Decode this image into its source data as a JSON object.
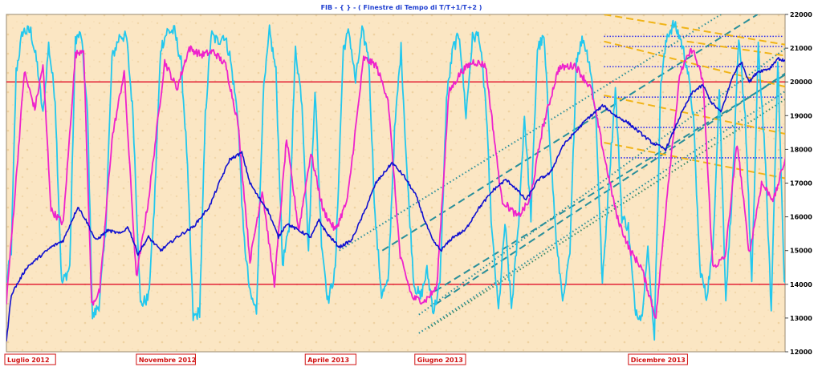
{
  "chart_data": {
    "type": "line",
    "title": "FIB - { } - ( Finestre di Tempo di T/T+1/T+2 )",
    "ylim": [
      12000,
      22000
    ],
    "y_ticks": [
      12000,
      13000,
      14000,
      15000,
      16000,
      17000,
      18000,
      19000,
      20000,
      21000,
      22000
    ],
    "x_labels": [
      "Luglio 2012",
      "Novembre 2012",
      "Aprile 2013",
      "Giugno 2013",
      "Dicembre 2013"
    ],
    "x_label_index": [
      0,
      162,
      370,
      505,
      768
    ],
    "n_points": 960,
    "grid": false,
    "legend": "none",
    "horizontal_levels": [
      {
        "value": 20000,
        "color": "#e0102a"
      },
      {
        "value": 14000,
        "color": "#e0102a"
      }
    ],
    "retracement_levels": [
      21350,
      21050,
      20450,
      19550,
      18650,
      17750
    ],
    "series": [
      {
        "color": "#1010d0",
        "keypoints": [
          [
            0,
            12300
          ],
          [
            6,
            13700
          ],
          [
            25,
            14500
          ],
          [
            40,
            14800
          ],
          [
            55,
            15100
          ],
          [
            70,
            15300
          ],
          [
            88,
            16300
          ],
          [
            98,
            15900
          ],
          [
            110,
            15300
          ],
          [
            125,
            15600
          ],
          [
            140,
            15500
          ],
          [
            150,
            15700
          ],
          [
            162,
            14900
          ],
          [
            175,
            15400
          ],
          [
            190,
            15000
          ],
          [
            210,
            15400
          ],
          [
            230,
            15700
          ],
          [
            250,
            16300
          ],
          [
            262,
            17000
          ],
          [
            275,
            17700
          ],
          [
            290,
            17900
          ],
          [
            300,
            17000
          ],
          [
            310,
            16600
          ],
          [
            322,
            16200
          ],
          [
            335,
            15400
          ],
          [
            345,
            15800
          ],
          [
            360,
            15600
          ],
          [
            375,
            15400
          ],
          [
            385,
            15900
          ],
          [
            395,
            15500
          ],
          [
            410,
            15100
          ],
          [
            425,
            15300
          ],
          [
            440,
            16100
          ],
          [
            455,
            17000
          ],
          [
            475,
            17600
          ],
          [
            490,
            17200
          ],
          [
            505,
            16600
          ],
          [
            515,
            15900
          ],
          [
            525,
            15300
          ],
          [
            535,
            15000
          ],
          [
            550,
            15400
          ],
          [
            565,
            15600
          ],
          [
            580,
            16200
          ],
          [
            600,
            16800
          ],
          [
            615,
            17100
          ],
          [
            625,
            16900
          ],
          [
            640,
            16500
          ],
          [
            655,
            17100
          ],
          [
            670,
            17300
          ],
          [
            685,
            18100
          ],
          [
            700,
            18500
          ],
          [
            715,
            18900
          ],
          [
            735,
            19300
          ],
          [
            750,
            19000
          ],
          [
            765,
            18800
          ],
          [
            780,
            18500
          ],
          [
            795,
            18200
          ],
          [
            812,
            18000
          ],
          [
            830,
            19000
          ],
          [
            845,
            19700
          ],
          [
            858,
            19900
          ],
          [
            868,
            19400
          ],
          [
            880,
            19100
          ],
          [
            895,
            20200
          ],
          [
            905,
            20600
          ],
          [
            915,
            20000
          ],
          [
            925,
            20300
          ],
          [
            940,
            20400
          ],
          [
            950,
            20700
          ],
          [
            960,
            20600
          ]
        ]
      },
      {
        "color": "#ee22cc",
        "keypoints": [
          [
            0,
            13500
          ],
          [
            10,
            16500
          ],
          [
            22,
            20300
          ],
          [
            35,
            19200
          ],
          [
            45,
            20500
          ],
          [
            55,
            16200
          ],
          [
            70,
            15800
          ],
          [
            85,
            20800
          ],
          [
            95,
            21000
          ],
          [
            105,
            13400
          ],
          [
            115,
            13800
          ],
          [
            130,
            18300
          ],
          [
            145,
            20300
          ],
          [
            160,
            14200
          ],
          [
            175,
            16500
          ],
          [
            195,
            20600
          ],
          [
            210,
            19800
          ],
          [
            225,
            21000
          ],
          [
            240,
            20800
          ],
          [
            255,
            20900
          ],
          [
            270,
            20500
          ],
          [
            285,
            18800
          ],
          [
            300,
            14700
          ],
          [
            315,
            16800
          ],
          [
            330,
            14000
          ],
          [
            345,
            18300
          ],
          [
            360,
            15600
          ],
          [
            375,
            17900
          ],
          [
            390,
            16200
          ],
          [
            405,
            15600
          ],
          [
            420,
            16500
          ],
          [
            440,
            20700
          ],
          [
            455,
            20500
          ],
          [
            470,
            19500
          ],
          [
            485,
            14800
          ],
          [
            500,
            13600
          ],
          [
            515,
            13500
          ],
          [
            530,
            13900
          ],
          [
            545,
            19700
          ],
          [
            560,
            20300
          ],
          [
            575,
            20600
          ],
          [
            590,
            20500
          ],
          [
            610,
            16500
          ],
          [
            630,
            16000
          ],
          [
            645,
            16500
          ],
          [
            660,
            18600
          ],
          [
            680,
            20400
          ],
          [
            700,
            20500
          ],
          [
            720,
            19800
          ],
          [
            738,
            17600
          ],
          [
            752,
            16000
          ],
          [
            768,
            15000
          ],
          [
            782,
            14500
          ],
          [
            800,
            13000
          ],
          [
            815,
            17000
          ],
          [
            830,
            20300
          ],
          [
            845,
            21000
          ],
          [
            858,
            20000
          ],
          [
            870,
            14500
          ],
          [
            885,
            14800
          ],
          [
            900,
            18200
          ],
          [
            915,
            14900
          ],
          [
            930,
            17000
          ],
          [
            945,
            16500
          ],
          [
            960,
            17800
          ]
        ]
      },
      {
        "color": "#22c8ee",
        "keypoints": [
          [
            0,
            14000
          ],
          [
            6,
            15000
          ],
          [
            12,
            20300
          ],
          [
            20,
            21500
          ],
          [
            30,
            21500
          ],
          [
            38,
            20500
          ],
          [
            45,
            19000
          ],
          [
            52,
            21100
          ],
          [
            60,
            19500
          ],
          [
            68,
            14000
          ],
          [
            78,
            14500
          ],
          [
            85,
            21300
          ],
          [
            92,
            21400
          ],
          [
            100,
            19000
          ],
          [
            106,
            13000
          ],
          [
            114,
            13400
          ],
          [
            122,
            15500
          ],
          [
            130,
            20700
          ],
          [
            140,
            21400
          ],
          [
            148,
            21300
          ],
          [
            156,
            19000
          ],
          [
            165,
            13400
          ],
          [
            175,
            13600
          ],
          [
            182,
            16200
          ],
          [
            190,
            21000
          ],
          [
            198,
            21500
          ],
          [
            207,
            21500
          ],
          [
            215,
            20600
          ],
          [
            222,
            18000
          ],
          [
            230,
            13000
          ],
          [
            238,
            13200
          ],
          [
            245,
            19000
          ],
          [
            252,
            21400
          ],
          [
            260,
            21200
          ],
          [
            268,
            21400
          ],
          [
            275,
            20800
          ],
          [
            285,
            19000
          ],
          [
            292,
            15500
          ],
          [
            300,
            13700
          ],
          [
            308,
            13200
          ],
          [
            316,
            19500
          ],
          [
            324,
            21500
          ],
          [
            332,
            20300
          ],
          [
            340,
            14600
          ],
          [
            348,
            15600
          ],
          [
            356,
            21000
          ],
          [
            364,
            19400
          ],
          [
            372,
            15000
          ],
          [
            380,
            19800
          ],
          [
            388,
            15300
          ],
          [
            396,
            13500
          ],
          [
            405,
            14400
          ],
          [
            415,
            21000
          ],
          [
            422,
            21500
          ],
          [
            430,
            20000
          ],
          [
            438,
            21500
          ],
          [
            446,
            20800
          ],
          [
            454,
            16000
          ],
          [
            462,
            13700
          ],
          [
            470,
            14000
          ],
          [
            478,
            18500
          ],
          [
            486,
            21000
          ],
          [
            494,
            17000
          ],
          [
            502,
            14000
          ],
          [
            510,
            13600
          ],
          [
            518,
            14400
          ],
          [
            526,
            13200
          ],
          [
            534,
            14000
          ],
          [
            542,
            19500
          ],
          [
            550,
            21000
          ],
          [
            558,
            21400
          ],
          [
            566,
            19000
          ],
          [
            574,
            21300
          ],
          [
            582,
            21400
          ],
          [
            590,
            19500
          ],
          [
            598,
            15500
          ],
          [
            606,
            13200
          ],
          [
            614,
            15800
          ],
          [
            622,
            13300
          ],
          [
            630,
            15500
          ],
          [
            638,
            19000
          ],
          [
            646,
            16000
          ],
          [
            654,
            21000
          ],
          [
            662,
            21300
          ],
          [
            670,
            18000
          ],
          [
            678,
            15000
          ],
          [
            686,
            13500
          ],
          [
            694,
            14900
          ],
          [
            702,
            20700
          ],
          [
            710,
            21300
          ],
          [
            718,
            20600
          ],
          [
            726,
            19000
          ],
          [
            734,
            14000
          ],
          [
            742,
            17000
          ],
          [
            750,
            19800
          ],
          [
            758,
            16000
          ],
          [
            766,
            15700
          ],
          [
            774,
            13300
          ],
          [
            782,
            13000
          ],
          [
            790,
            15000
          ],
          [
            798,
            12500
          ],
          [
            806,
            20000
          ],
          [
            814,
            21400
          ],
          [
            822,
            21700
          ],
          [
            830,
            21300
          ],
          [
            838,
            20500
          ],
          [
            846,
            19000
          ],
          [
            854,
            14500
          ],
          [
            862,
            13600
          ],
          [
            870,
            15000
          ],
          [
            878,
            19800
          ],
          [
            886,
            13600
          ],
          [
            894,
            16800
          ],
          [
            902,
            21200
          ],
          [
            910,
            19000
          ],
          [
            918,
            14000
          ],
          [
            926,
            21000
          ],
          [
            934,
            18000
          ],
          [
            942,
            13200
          ],
          [
            950,
            20700
          ],
          [
            958,
            14000
          ],
          [
            960,
            14000
          ]
        ]
      }
    ],
    "trend_lines": [
      {
        "color": "#2a8f9a",
        "style": "dashed",
        "from": [
          463,
          15000
        ],
        "to": [
          925,
          22000
        ]
      },
      {
        "color": "#2a8f9a",
        "style": "dashed",
        "from": [
          528,
          13400
        ],
        "to": [
          975,
          20500
        ]
      },
      {
        "color": "#2a8f9a",
        "style": "dashed",
        "from": [
          528,
          13800
        ],
        "to": [
          1012,
          21000
        ]
      },
      {
        "color": "#2a8f9a",
        "style": "dotted",
        "from": [
          508,
          12550
        ],
        "to": [
          1008,
          20500
        ]
      },
      {
        "color": "#2a8f9a",
        "style": "dotted",
        "from": [
          508,
          13100
        ],
        "to": [
          1000,
          21700
        ]
      },
      {
        "color": "#2a8f9a",
        "style": "dotted",
        "from": [
          410,
          15000
        ],
        "to": [
          880,
          22000
        ]
      },
      {
        "color": "#3a8a6a",
        "style": "dotted",
        "from": [
          520,
          12700
        ],
        "to": [
          1012,
          20300
        ]
      },
      {
        "color": "#f0b418",
        "style": "dashed",
        "from": [
          736,
          22000
        ],
        "to": [
          1010,
          20900
        ]
      },
      {
        "color": "#f0b418",
        "style": "dashed",
        "from": [
          736,
          21200
        ],
        "to": [
          1010,
          19550
        ]
      },
      {
        "color": "#f0b418",
        "style": "dashed",
        "from": [
          736,
          19600
        ],
        "to": [
          1010,
          18200
        ]
      },
      {
        "color": "#f0b418",
        "style": "dashed",
        "from": [
          736,
          18200
        ],
        "to": [
          1010,
          16900
        ]
      },
      {
        "color": "#f0b418",
        "style": "dashed",
        "from": [
          838,
          21200
        ],
        "to": [
          1010,
          20600
        ]
      }
    ]
  }
}
